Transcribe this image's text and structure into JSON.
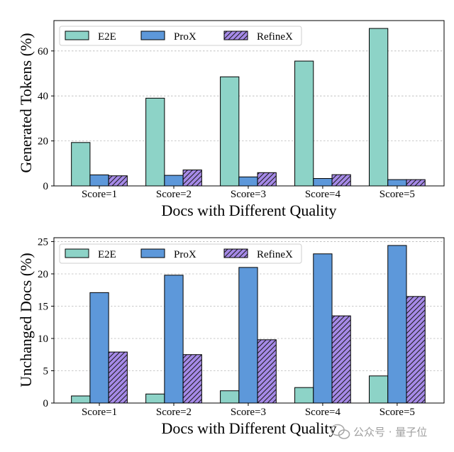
{
  "chart_data": [
    {
      "type": "bar",
      "categories": [
        "Score=1",
        "Score=2",
        "Score=3",
        "Score=4",
        "Score=5"
      ],
      "series": [
        {
          "name": "E2E",
          "values": [
            19.3,
            39.0,
            48.5,
            55.5,
            70.0
          ],
          "color": "#8dd3c7"
        },
        {
          "name": "ProX",
          "values": [
            4.9,
            4.7,
            4.0,
            3.3,
            2.8
          ],
          "color": "#5d98da"
        },
        {
          "name": "RefineX",
          "values": [
            4.5,
            7.1,
            5.9,
            5.0,
            2.8
          ],
          "color": "#a68ae8",
          "hatch": "//"
        }
      ],
      "xlabel": "Docs with Different Quality",
      "ylabel": "Generated Tokens (%)",
      "ylim": [
        0,
        73.5
      ],
      "yticks": [
        0,
        20,
        40,
        60
      ],
      "grid": true,
      "legend": "top-left"
    },
    {
      "type": "bar",
      "categories": [
        "Score=1",
        "Score=2",
        "Score=3",
        "Score=4",
        "Score=5"
      ],
      "series": [
        {
          "name": "E2E",
          "values": [
            1.1,
            1.4,
            1.9,
            2.4,
            4.2
          ],
          "color": "#8dd3c7"
        },
        {
          "name": "ProX",
          "values": [
            17.1,
            19.8,
            21.0,
            23.1,
            24.4
          ],
          "color": "#5d98da"
        },
        {
          "name": "RefineX",
          "values": [
            7.9,
            7.5,
            9.8,
            13.5,
            16.5
          ],
          "color": "#a68ae8",
          "hatch": "//"
        }
      ],
      "xlabel": "Docs with Different Quality",
      "ylabel": "Unchanged Docs (%)",
      "ylim": [
        0,
        25.6
      ],
      "yticks": [
        0,
        5,
        10,
        15,
        20,
        25
      ],
      "grid": true,
      "legend": "top-left"
    }
  ],
  "watermark": "公众号 · 量子位"
}
